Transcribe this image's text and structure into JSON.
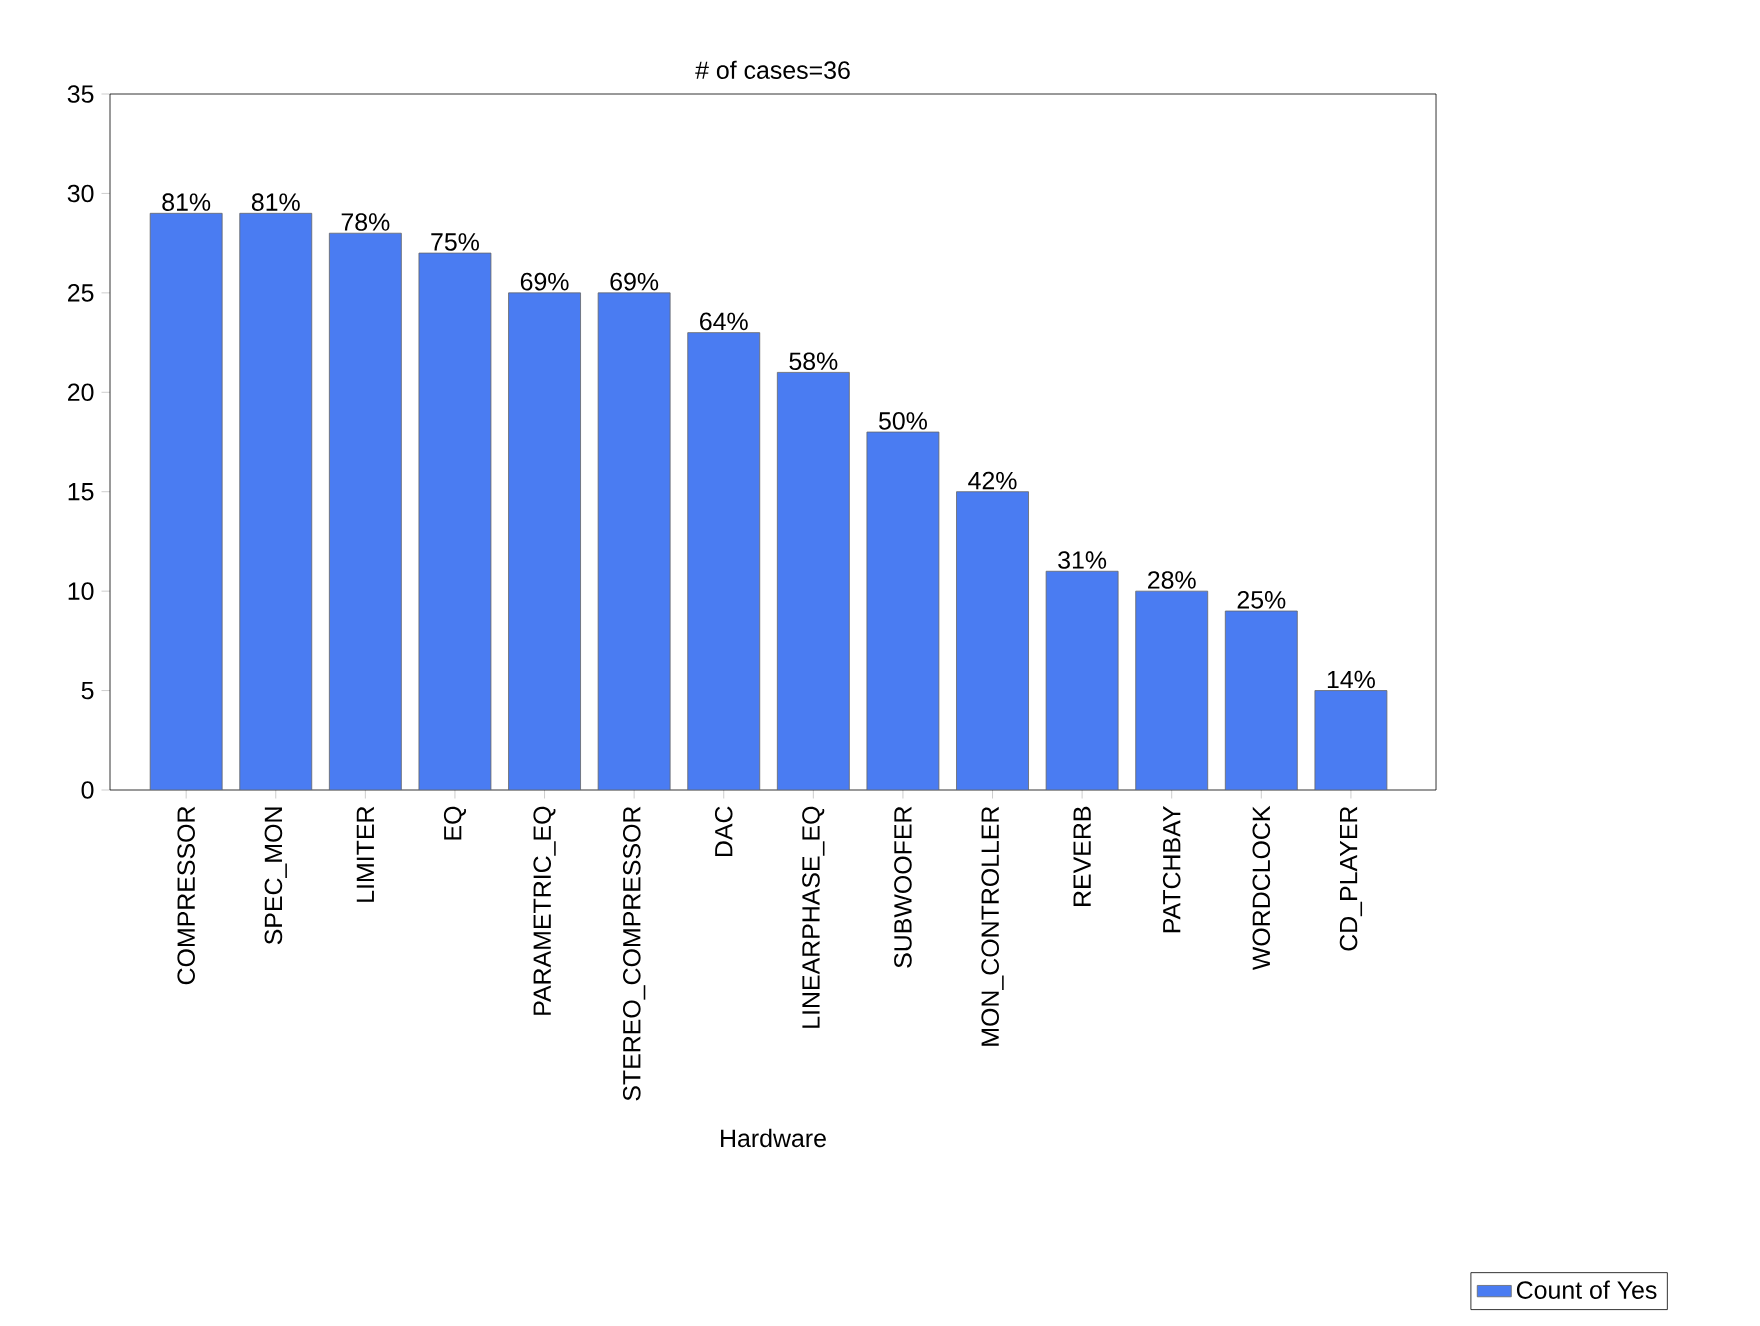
{
  "chart_data": {
    "type": "bar",
    "title": "# of cases=36",
    "xlabel": "Hardware",
    "categories": [
      "COMPRESSOR",
      "SPEC_MON",
      "LIMITER",
      "EQ",
      "PARAMETRIC_EQ",
      "STEREO_COMPRESSOR",
      "DAC",
      "LINEARPHASE_EQ",
      "SUBWOOFER",
      "MON_CONTROLLER",
      "REVERB",
      "PATCHBAY",
      "WORDCLOCK",
      "CD_PLAYER"
    ],
    "series": [
      {
        "name": "Count of Yes",
        "color": "#4a7cf2",
        "values": [
          29,
          29,
          28,
          27,
          25,
          25,
          23,
          21,
          18,
          15,
          11,
          10,
          9,
          5
        ]
      }
    ],
    "annotations": [
      {
        "text": "81%",
        "x": "COMPRESSOR",
        "y": 29
      },
      {
        "text": "81%",
        "x": "SPEC_MON",
        "y": 29
      },
      {
        "text": "78%",
        "x": "LIMITER",
        "y": 28
      },
      {
        "text": "75%",
        "x": "EQ",
        "y": 27
      },
      {
        "text": "69%",
        "x": "PARAMETRIC_EQ",
        "y": 25
      },
      {
        "text": "69%",
        "x": "STEREO_COMPRESSOR",
        "y": 25
      },
      {
        "text": "64%",
        "x": "DAC",
        "y": 23
      },
      {
        "text": "58%",
        "x": "LINEARPHASE_EQ",
        "y": 21
      },
      {
        "text": "50%",
        "x": "SUBWOOFER",
        "y": 18
      },
      {
        "text": "42%",
        "x": "MON_CONTROLLER",
        "y": 15
      },
      {
        "text": "31%",
        "x": "REVERB",
        "y": 11
      },
      {
        "text": "28%",
        "x": "PATCHBAY",
        "y": 10
      },
      {
        "text": "25%",
        "x": "WORDCLOCK",
        "y": 9
      },
      {
        "text": "14%",
        "x": "CD_PLAYER",
        "y": 5
      }
    ],
    "ylim": [
      0,
      35
    ],
    "yticks": [
      0,
      5,
      10,
      15,
      20,
      25,
      30,
      35
    ],
    "grid": false,
    "legend": "bottom right"
  }
}
